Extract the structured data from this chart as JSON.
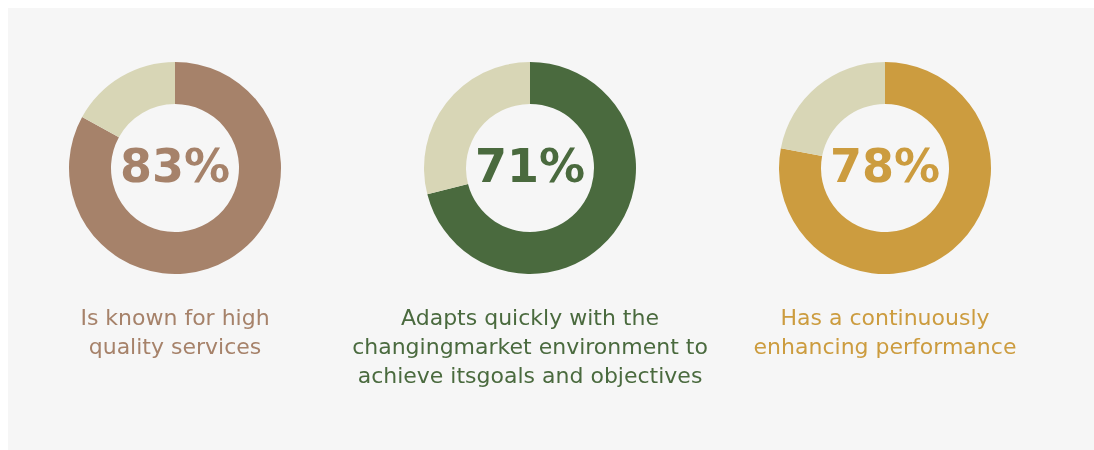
{
  "chart_data": [
    {
      "type": "donut",
      "title": "Is known for high\nquality services",
      "categories": [
        null,
        null
      ],
      "values": [
        83,
        17
      ],
      "colors": [
        "#a6826a",
        "#d8d6b6"
      ],
      "value_labels": [
        "83%",
        null
      ]
    },
    {
      "type": "donut",
      "title": "Adapts quickly with the\nchangingmarket environment to\nachieve itsgoals and objectives",
      "categories": [
        null,
        null
      ],
      "values": [
        71,
        29
      ],
      "colors": [
        "#4a6a3e",
        "#d8d6b6"
      ],
      "value_labels": [
        "71%",
        null
      ]
    },
    {
      "type": "donut",
      "title": "Has a continuously\nenhancing performance",
      "categories": [
        null,
        null
      ],
      "values": [
        78,
        22
      ],
      "colors": [
        "#cc9c3f",
        "#d8d6b6"
      ],
      "value_labels": [
        "78%",
        null
      ]
    }
  ]
}
